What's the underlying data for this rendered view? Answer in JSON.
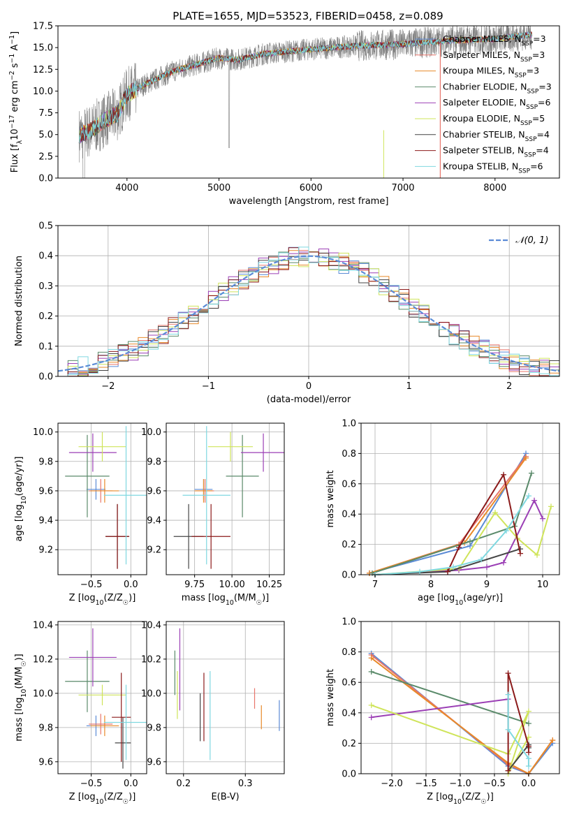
{
  "colors": {
    "chabrier_miles": "#5b8bd6",
    "salpeter_miles": "#e8756a",
    "kroupa_miles": "#e88a2a",
    "chabrier_elodie": "#5a8a6a",
    "salpeter_elodie": "#9b3fb5",
    "kroupa_elodie": "#cfe45a",
    "chabrier_stelib": "#444444",
    "salpeter_stelib": "#8b1a1a",
    "kroupa_stelib": "#7fd8e0",
    "data": "#808080",
    "normal": "#5b8bd6",
    "grid": "#b0b0b0"
  },
  "chart_data": [
    {
      "id": "spectrum",
      "type": "line",
      "title": "PLATE=1655, MJD=53523, FIBERID=0458, z=0.089",
      "xlabel": "wavelength [Angstrom, rest frame]",
      "ylabel": "Flux [f_λ10^-17 erg cm^-2 s^-1 A^-1]",
      "xlim": [
        3250,
        8700
      ],
      "ylim": [
        0,
        17.5
      ],
      "xticks": [
        4000,
        5000,
        6000,
        7000,
        8000
      ],
      "yticks": [
        0.0,
        2.5,
        5.0,
        7.5,
        10.0,
        12.5,
        15.0,
        17.5
      ],
      "ytick_labels": [
        "0.0",
        "2.5",
        "5.0",
        "7.5",
        "10.0",
        "12.5",
        "15.0",
        "17.5"
      ],
      "grid": false,
      "legend_position": "right",
      "legend": [
        {
          "key": "chabrier_miles",
          "label": "Chabrier MILES, N",
          "sub": "SSP",
          "val": "=3"
        },
        {
          "key": "salpeter_miles",
          "label": "Salpeter MILES, N",
          "sub": "SSP",
          "val": "=3"
        },
        {
          "key": "kroupa_miles",
          "label": "Kroupa MILES, N",
          "sub": "SSP",
          "val": "=3"
        },
        {
          "key": "chabrier_elodie",
          "label": "Chabrier ELODIE, N",
          "sub": "SSP",
          "val": "=3"
        },
        {
          "key": "salpeter_elodie",
          "label": "Salpeter ELODIE, N",
          "sub": "SSP",
          "val": "=6"
        },
        {
          "key": "kroupa_elodie",
          "label": "Kroupa ELODIE, N",
          "sub": "SSP",
          "val": "=5"
        },
        {
          "key": "chabrier_stelib",
          "label": "Chabrier STELIB, N",
          "sub": "SSP",
          "val": "=4"
        },
        {
          "key": "salpeter_stelib",
          "label": "Salpeter STELIB, N",
          "sub": "SSP",
          "val": "=4"
        },
        {
          "key": "kroupa_stelib",
          "label": "Kroupa STELIB, N",
          "sub": "SSP",
          "val": "=6"
        }
      ],
      "continuum": [
        [
          3480,
          5.0
        ],
        [
          3600,
          5.4
        ],
        [
          3750,
          6.6
        ],
        [
          3900,
          7.4
        ],
        [
          4000,
          9.6
        ],
        [
          4200,
          10.8
        ],
        [
          4500,
          12.3
        ],
        [
          4800,
          13.2
        ],
        [
          5000,
          13.8
        ],
        [
          5200,
          13.6
        ],
        [
          5500,
          14.3
        ],
        [
          6000,
          14.8
        ],
        [
          6500,
          15.2
        ],
        [
          7000,
          15.4
        ],
        [
          7500,
          15.8
        ],
        [
          8000,
          16.0
        ],
        [
          8400,
          16.5
        ]
      ]
    },
    {
      "id": "residuals",
      "type": "histogram",
      "xlabel": "(data-model)/error",
      "ylabel": "Normed distribution",
      "xlim": [
        -2.5,
        2.5
      ],
      "ylim": [
        0,
        0.5
      ],
      "xticks": [
        -2,
        -1,
        0,
        1,
        2
      ],
      "xtick_labels": [
        "−2",
        "−1",
        "0",
        "1",
        "2"
      ],
      "yticks": [
        0.0,
        0.1,
        0.2,
        0.3,
        0.4,
        0.5
      ],
      "ytick_labels": [
        "0.0",
        "0.1",
        "0.2",
        "0.3",
        "0.4",
        "0.5"
      ],
      "grid": true,
      "legend": [
        {
          "label": "𝒩(0, 1)"
        }
      ],
      "legend_position": "top-right",
      "bin_width": 0.1,
      "bin_start": -2.5,
      "bins": 50
    },
    {
      "id": "age_vs_Z",
      "type": "errorbar",
      "xlabel": "Z [log₁₀(Z/Z☉)]",
      "ylabel": "age [log₁₀(age/yr)]",
      "xlim": [
        -0.92,
        0.2
      ],
      "ylim": [
        9.03,
        10.06
      ],
      "xticks": [
        -0.5,
        0.0
      ],
      "xtick_labels": [
        "−0.5",
        "0.0"
      ],
      "yticks": [
        9.2,
        9.4,
        9.6,
        9.8,
        10.0
      ],
      "ytick_labels": [
        "9.2",
        "9.4",
        "9.6",
        "9.8",
        "10.0"
      ],
      "grid": true,
      "points": [
        {
          "key": "chabrier_miles",
          "x": -0.44,
          "y": 9.61,
          "xerr": 0.12,
          "yerr": 0.07
        },
        {
          "key": "salpeter_miles",
          "x": -0.38,
          "y": 9.6,
          "xerr": 0.15,
          "yerr": 0.08
        },
        {
          "key": "kroupa_miles",
          "x": -0.33,
          "y": 9.6,
          "xerr": 0.18,
          "yerr": 0.08
        },
        {
          "key": "chabrier_elodie",
          "x": -0.55,
          "y": 9.7,
          "xerr": 0.28,
          "yerr": 0.28
        },
        {
          "key": "salpeter_elodie",
          "x": -0.48,
          "y": 9.86,
          "xerr": 0.3,
          "yerr": 0.13
        },
        {
          "key": "kroupa_elodie",
          "x": -0.36,
          "y": 9.9,
          "xerr": 0.3,
          "yerr": 0.1
        },
        {
          "key": "chabrier_stelib",
          "x": -0.17,
          "y": 9.29,
          "xerr": 0.15,
          "yerr": 0.22
        },
        {
          "key": "salpeter_stelib",
          "x": -0.17,
          "y": 9.29,
          "xerr": 0.15,
          "yerr": 0.22
        },
        {
          "key": "kroupa_stelib",
          "x": -0.06,
          "y": 9.57,
          "xerr": 0.28,
          "yerr": 0.47
        }
      ]
    },
    {
      "id": "age_vs_mass",
      "type": "errorbar",
      "xlabel": "mass [log₁₀(M/M☉)]",
      "ylabel": "",
      "xlim": [
        9.56,
        10.35
      ],
      "ylim": [
        9.03,
        10.06
      ],
      "xticks": [
        9.75,
        10.0,
        10.25
      ],
      "xtick_labels": [
        "9.75",
        "10.00",
        "10.25"
      ],
      "yticks": [
        9.2,
        9.4,
        9.6,
        9.8,
        10.0
      ],
      "ytick_labels": [
        "9.2",
        "9.4",
        "9.6",
        "9.8",
        "10.0"
      ],
      "grid": true,
      "points": [
        {
          "key": "chabrier_miles",
          "x": 9.81,
          "y": 9.61,
          "xerr": 0.06,
          "yerr": 0.07
        },
        {
          "key": "salpeter_miles",
          "x": 9.82,
          "y": 9.6,
          "xerr": 0.06,
          "yerr": 0.08
        },
        {
          "key": "kroupa_miles",
          "x": 9.81,
          "y": 9.6,
          "xerr": 0.06,
          "yerr": 0.08
        },
        {
          "key": "chabrier_elodie",
          "x": 10.07,
          "y": 9.7,
          "xerr": 0.11,
          "yerr": 0.28
        },
        {
          "key": "salpeter_elodie",
          "x": 10.21,
          "y": 9.86,
          "xerr": 0.15,
          "yerr": 0.13
        },
        {
          "key": "kroupa_elodie",
          "x": 9.99,
          "y": 9.9,
          "xerr": 0.15,
          "yerr": 0.1
        },
        {
          "key": "chabrier_stelib",
          "x": 9.71,
          "y": 9.29,
          "xerr": 0.1,
          "yerr": 0.22
        },
        {
          "key": "salpeter_stelib",
          "x": 9.86,
          "y": 9.29,
          "xerr": 0.13,
          "yerr": 0.22
        },
        {
          "key": "kroupa_stelib",
          "x": 9.83,
          "y": 9.57,
          "xerr": 0.16,
          "yerr": 0.47
        }
      ]
    },
    {
      "id": "weight_vs_age",
      "type": "line",
      "xlabel": "age [log₁₀(age/yr)]",
      "ylabel": "mass weight",
      "xlim": [
        6.75,
        10.3
      ],
      "ylim": [
        0,
        1.0
      ],
      "xticks": [
        7,
        8,
        9,
        10
      ],
      "xtick_labels": [
        "7",
        "8",
        "9",
        "10"
      ],
      "yticks": [
        0.0,
        0.2,
        0.4,
        0.6,
        0.8,
        1.0
      ],
      "ytick_labels": [
        "0.0",
        "0.2",
        "0.4",
        "0.6",
        "0.8",
        "1.0"
      ],
      "grid": true,
      "series": [
        {
          "key": "chabrier_miles",
          "x": [
            6.9,
            8.7,
            9.7
          ],
          "y": [
            0.01,
            0.19,
            0.8
          ]
        },
        {
          "key": "salpeter_miles",
          "x": [
            6.9,
            8.5,
            9.7
          ],
          "y": [
            0.01,
            0.2,
            0.78
          ]
        },
        {
          "key": "kroupa_miles",
          "x": [
            6.9,
            8.6,
            9.7
          ],
          "y": [
            0.01,
            0.21,
            0.77
          ]
        },
        {
          "key": "chabrier_elodie",
          "x": [
            6.95,
            8.7,
            9.5,
            9.8
          ],
          "y": [
            0.01,
            0.22,
            0.32,
            0.67
          ]
        },
        {
          "key": "salpeter_elodie",
          "x": [
            7.0,
            8.5,
            9.0,
            9.3,
            9.85,
            10.0
          ],
          "y": [
            0.0,
            0.03,
            0.05,
            0.08,
            0.49,
            0.37
          ]
        },
        {
          "key": "kroupa_elodie",
          "x": [
            7.0,
            8.5,
            9.15,
            9.55,
            9.9,
            10.15
          ],
          "y": [
            0.0,
            0.04,
            0.41,
            0.24,
            0.13,
            0.45
          ]
        },
        {
          "key": "chabrier_stelib",
          "x": [
            7.0,
            8.3,
            9.6
          ],
          "y": [
            0.0,
            0.02,
            0.17
          ]
        },
        {
          "key": "salpeter_stelib",
          "x": [
            8.3,
            8.5,
            9.3,
            9.6
          ],
          "y": [
            0.02,
            0.18,
            0.66,
            0.14
          ]
        },
        {
          "key": "kroupa_stelib",
          "x": [
            7.0,
            7.8,
            8.4,
            8.9,
            9.35,
            9.75
          ],
          "y": [
            0.0,
            0.02,
            0.05,
            0.1,
            0.29,
            0.52
          ]
        }
      ]
    },
    {
      "id": "mass_vs_Z",
      "type": "errorbar",
      "xlabel": "Z [log₁₀(Z/Z☉)]",
      "ylabel": "mass [log₁₀(M/M☉)]",
      "xlim": [
        -0.92,
        0.2
      ],
      "ylim": [
        9.53,
        10.42
      ],
      "xticks": [
        -0.5,
        0.0
      ],
      "xtick_labels": [
        "−0.5",
        "0.0"
      ],
      "yticks": [
        9.6,
        9.8,
        10.0,
        10.2,
        10.4
      ],
      "ytick_labels": [
        "9.6",
        "9.8",
        "10.0",
        "10.2",
        "10.4"
      ],
      "grid": true,
      "points": [
        {
          "key": "chabrier_miles",
          "x": -0.44,
          "y": 9.81,
          "xerr": 0.12,
          "yerr": 0.06
        },
        {
          "key": "salpeter_miles",
          "x": -0.38,
          "y": 9.82,
          "xerr": 0.15,
          "yerr": 0.06
        },
        {
          "key": "kroupa_miles",
          "x": -0.33,
          "y": 9.81,
          "xerr": 0.18,
          "yerr": 0.06
        },
        {
          "key": "chabrier_elodie",
          "x": -0.55,
          "y": 10.07,
          "xerr": 0.28,
          "yerr": 0.18
        },
        {
          "key": "salpeter_elodie",
          "x": -0.48,
          "y": 10.21,
          "xerr": 0.3,
          "yerr": 0.17
        },
        {
          "key": "kroupa_elodie",
          "x": -0.36,
          "y": 9.99,
          "xerr": 0.3,
          "yerr": 0.06
        },
        {
          "key": "chabrier_stelib",
          "x": -0.1,
          "y": 9.71,
          "xerr": 0.1,
          "yerr": 0.15
        },
        {
          "key": "salpeter_stelib",
          "x": -0.12,
          "y": 9.86,
          "xerr": 0.12,
          "yerr": 0.26
        },
        {
          "key": "kroupa_stelib",
          "x": -0.06,
          "y": 9.83,
          "xerr": 0.28,
          "yerr": 0.22
        }
      ]
    },
    {
      "id": "mass_vs_ebv",
      "type": "errorbar",
      "xlabel": "E(B-V)",
      "ylabel": "",
      "xlim": [
        0.172,
        0.363
      ],
      "ylim": [
        9.53,
        10.42
      ],
      "xticks": [
        0.2,
        0.3
      ],
      "xtick_labels": [
        "0.2",
        "0.3"
      ],
      "yticks": [
        9.6,
        9.8,
        10.0,
        10.2,
        10.4
      ],
      "ytick_labels": [
        "9.6",
        "9.8",
        "10.0",
        "10.2",
        "10.4"
      ],
      "grid": true,
      "points": [
        {
          "key": "chabrier_miles",
          "x": 0.355,
          "y": 9.87,
          "xerr": 0,
          "yerr": 0.09
        },
        {
          "key": "salpeter_miles",
          "x": 0.315,
          "y": 9.97,
          "xerr": 0,
          "yerr": 0.06
        },
        {
          "key": "kroupa_miles",
          "x": 0.326,
          "y": 9.86,
          "xerr": 0,
          "yerr": 0.07
        },
        {
          "key": "chabrier_elodie",
          "x": 0.186,
          "y": 10.12,
          "xerr": 0,
          "yerr": 0.13
        },
        {
          "key": "salpeter_elodie",
          "x": 0.194,
          "y": 10.14,
          "xerr": 0,
          "yerr": 0.24
        },
        {
          "key": "kroupa_elodie",
          "x": 0.19,
          "y": 9.99,
          "xerr": 0,
          "yerr": 0.14
        },
        {
          "key": "chabrier_stelib",
          "x": 0.227,
          "y": 9.86,
          "xerr": 0,
          "yerr": 0.14
        },
        {
          "key": "salpeter_stelib",
          "x": 0.233,
          "y": 9.92,
          "xerr": 0,
          "yerr": 0.2
        },
        {
          "key": "kroupa_stelib",
          "x": 0.243,
          "y": 9.87,
          "xerr": 0,
          "yerr": 0.26
        }
      ]
    },
    {
      "id": "weight_vs_Z",
      "type": "line",
      "xlabel": "Z [log₁₀(Z/Z☉)]",
      "ylabel": "mass weight",
      "xlim": [
        -2.45,
        0.45
      ],
      "ylim": [
        0,
        1.0
      ],
      "xticks": [
        -2.0,
        -1.5,
        -1.0,
        -0.5,
        0.0
      ],
      "xtick_labels": [
        "−2.0",
        "−1.5",
        "−1.0",
        "−0.5",
        "0.0"
      ],
      "yticks": [
        0.0,
        0.2,
        0.4,
        0.6,
        0.8,
        1.0
      ],
      "ytick_labels": [
        "0.0",
        "0.2",
        "0.4",
        "0.6",
        "0.8",
        "1.0"
      ],
      "grid": true,
      "series": [
        {
          "key": "chabrier_miles",
          "x": [
            -2.3,
            -0.3,
            0.0,
            0.35
          ],
          "y": [
            0.79,
            0.05,
            0.0,
            0.2
          ]
        },
        {
          "key": "salpeter_miles",
          "x": [
            -2.3,
            -0.3,
            0.0,
            0.35
          ],
          "y": [
            0.78,
            0.06,
            0.0,
            0.22
          ]
        },
        {
          "key": "kroupa_miles",
          "x": [
            -2.3,
            -0.3,
            0.0,
            0.35
          ],
          "y": [
            0.76,
            0.07,
            0.0,
            0.22
          ]
        },
        {
          "key": "chabrier_elodie",
          "x": [
            -2.3,
            0.0
          ],
          "y": [
            0.67,
            0.33
          ]
        },
        {
          "key": "salpeter_elodie",
          "x": [
            -2.3,
            -0.3
          ],
          "y": [
            0.37,
            0.49
          ]
        },
        {
          "key": "kroupa_elodie",
          "x": [
            -2.3,
            -0.3,
            0.0,
            -0.3,
            0.0
          ],
          "y": [
            0.45,
            0.13,
            0.41,
            0.0,
            0.24
          ]
        },
        {
          "key": "chabrier_stelib",
          "x": [
            -0.3,
            0.0,
            0.0
          ],
          "y": [
            0.02,
            0.19,
            0.17
          ]
        },
        {
          "key": "salpeter_stelib",
          "x": [
            -0.3,
            -0.3,
            0.0,
            0.0
          ],
          "y": [
            0.02,
            0.66,
            0.18,
            0.14
          ]
        },
        {
          "key": "kroupa_stelib",
          "x": [
            -0.3,
            -0.3,
            0.0,
            0.0
          ],
          "y": [
            0.52,
            0.29,
            0.1,
            0.05
          ]
        }
      ]
    }
  ]
}
